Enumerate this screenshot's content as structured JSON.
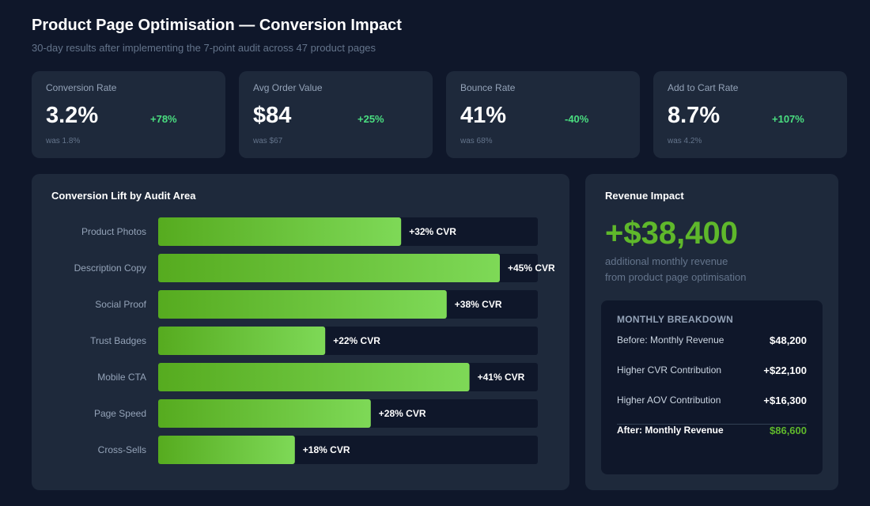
{
  "header": {
    "title": "Product Page Optimisation — Conversion Impact",
    "subtitle": "30-day results after implementing the 7-point audit across 47 product pages"
  },
  "kpis": [
    {
      "label": "Conversion Rate",
      "value": "3.2%",
      "change": "+78%",
      "previous": "was 1.8%"
    },
    {
      "label": "Avg Order Value",
      "value": "$84",
      "change": "+25%",
      "previous": "was $67"
    },
    {
      "label": "Bounce Rate",
      "value": "41%",
      "change": "-40%",
      "previous": "was 68%"
    },
    {
      "label": "Add to Cart Rate",
      "value": "8.7%",
      "change": "+107%",
      "previous": "was 4.2%"
    }
  ],
  "chart_data": {
    "type": "bar",
    "orientation": "horizontal",
    "title": "Conversion Lift by Audit Area",
    "categories": [
      "Product Photos",
      "Description Copy",
      "Social Proof",
      "Trust Badges",
      "Mobile CTA",
      "Page Speed",
      "Cross-Sells"
    ],
    "values": [
      32,
      45,
      38,
      22,
      41,
      28,
      18
    ],
    "data_labels": [
      "+32% CVR",
      "+45% CVR",
      "+38% CVR",
      "+22% CVR",
      "+41% CVR",
      "+28% CVR",
      "+18% CVR"
    ],
    "xlim": [
      0,
      50
    ],
    "grid": false,
    "bar_color_start": "#56ab1f",
    "bar_color_end": "#7ed957",
    "track_color": "#0f172a"
  },
  "revenue": {
    "title": "Revenue Impact",
    "amount": "+$38,400",
    "desc_line1": "additional monthly revenue",
    "desc_line2": "from product page optimisation",
    "breakdown_title": "MONTHLY BREAKDOWN",
    "rows": [
      {
        "label": "Before: Monthly Revenue",
        "value": "$48,200"
      },
      {
        "label": "Higher CVR Contribution",
        "value": "+$22,100"
      },
      {
        "label": "Higher AOV Contribution",
        "value": "+$16,300"
      },
      {
        "label": "After: Monthly Revenue",
        "value": "$86,600"
      }
    ]
  },
  "colors": {
    "background": "#0f172a",
    "card": "#1e293b",
    "accent_green": "#5fb82b",
    "positive_change": "#4ade80"
  }
}
